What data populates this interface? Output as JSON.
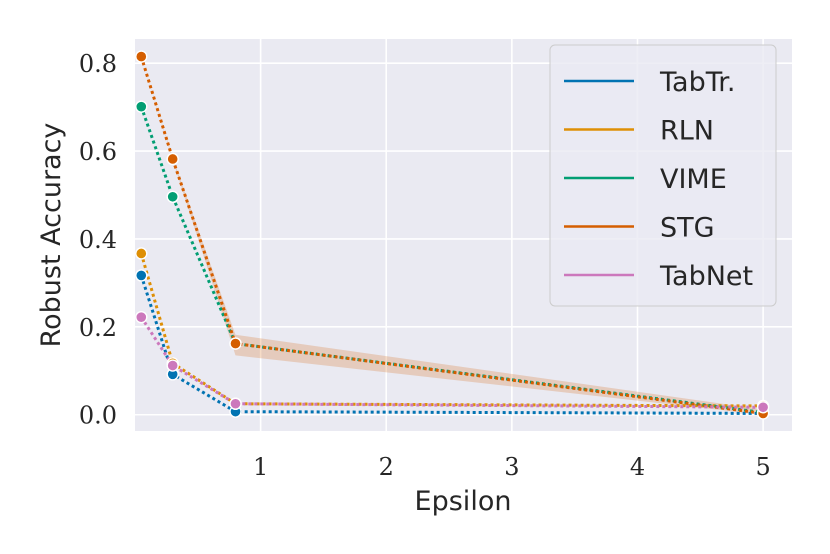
{
  "chart_data": {
    "type": "line",
    "title": "",
    "xlabel": "Epsilon",
    "ylabel": "Robust Accuracy",
    "xlim": [
      -0.0,
      5.23
    ],
    "ylim": [
      -0.037,
      0.855
    ],
    "xticks": [
      1,
      2,
      3,
      4,
      5
    ],
    "yticks": [
      0.0,
      0.2,
      0.4,
      0.6,
      0.8
    ],
    "xtick_labels": [
      "1",
      "2",
      "3",
      "4",
      "5"
    ],
    "ytick_labels": [
      "0.0",
      "0.2",
      "0.4",
      "0.6",
      "0.8"
    ],
    "x": [
      0.05,
      0.3,
      0.8,
      5.0
    ],
    "grid": true,
    "legend_position": "top-right",
    "series": [
      {
        "name": "TabTr.",
        "color": "#0173b2",
        "values": [
          0.317,
          0.092,
          0.007,
          0.003
        ]
      },
      {
        "name": "RLN",
        "color": "#de8f05",
        "values": [
          0.367,
          0.117,
          0.025,
          0.02
        ]
      },
      {
        "name": "VIME",
        "color": "#029e73",
        "values": [
          0.701,
          0.496,
          0.162,
          0.005
        ]
      },
      {
        "name": "STG",
        "color": "#d55e00",
        "values": [
          0.815,
          0.582,
          0.162,
          0.003
        ],
        "band_low": [
          0.815,
          0.58,
          0.135,
          0.0
        ],
        "band_high": [
          0.815,
          0.585,
          0.182,
          0.012
        ]
      },
      {
        "name": "TabNet",
        "color": "#cc78bc",
        "values": [
          0.222,
          0.112,
          0.025,
          0.017
        ]
      }
    ]
  }
}
